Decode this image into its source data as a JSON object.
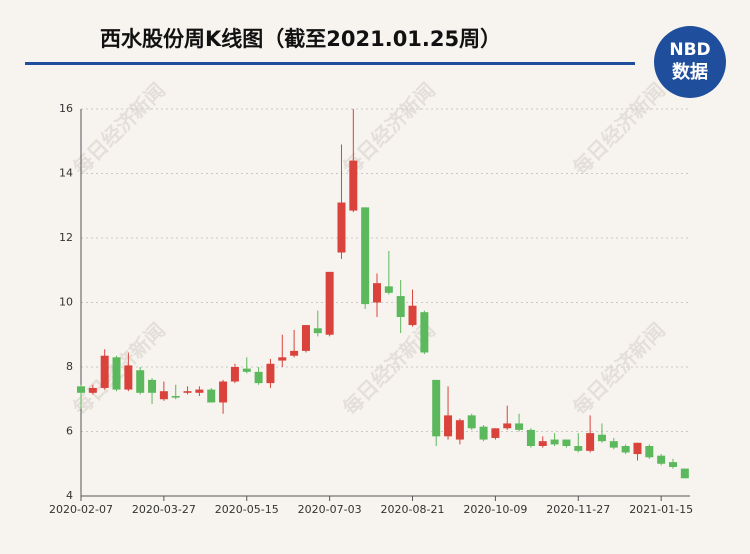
{
  "header": {
    "title": "西水股份周K线图（截至2021.01.25周）",
    "logo_top": "NBD",
    "logo_bottom": "数据"
  },
  "watermark": "每日经济新闻",
  "chart_data": {
    "type": "candlestick",
    "categories": [
      "2020-02-07",
      null,
      null,
      null,
      null,
      null,
      null,
      "2020-03-27",
      null,
      null,
      null,
      null,
      null,
      null,
      "2020-05-15",
      null,
      null,
      null,
      null,
      null,
      null,
      "2020-07-03",
      null,
      null,
      null,
      null,
      null,
      null,
      "2020-08-21",
      null,
      null,
      null,
      null,
      null,
      null,
      "2020-10-09",
      null,
      null,
      null,
      null,
      null,
      null,
      "2020-11-27",
      null,
      null,
      null,
      null,
      null,
      null,
      "2021-01-15",
      null,
      null
    ],
    "open": [
      7.4,
      7.2,
      7.35,
      8.3,
      7.3,
      7.9,
      7.6,
      7.0,
      7.1,
      7.2,
      7.2,
      7.3,
      6.9,
      7.55,
      7.95,
      7.85,
      7.5,
      8.2,
      8.35,
      8.5,
      9.2,
      9.0,
      11.55,
      12.85,
      12.95,
      10.0,
      10.5,
      10.2,
      9.3,
      9.7,
      7.6,
      5.85,
      5.75,
      6.5,
      6.15,
      5.8,
      6.1,
      6.25,
      6.05,
      5.55,
      5.75,
      5.75,
      5.55,
      5.4,
      5.9,
      5.7,
      5.55,
      5.3,
      5.55,
      5.25,
      5.05,
      4.85
    ],
    "high": [
      7.45,
      7.45,
      8.55,
      8.35,
      8.45,
      8.0,
      7.65,
      7.55,
      7.45,
      7.4,
      7.4,
      7.35,
      7.6,
      8.1,
      8.3,
      8.0,
      8.25,
      9.0,
      9.15,
      9.3,
      9.75,
      10.95,
      14.9,
      16.0,
      12.95,
      10.9,
      11.6,
      10.7,
      10.4,
      9.75,
      7.6,
      7.4,
      6.4,
      6.55,
      6.2,
      6.1,
      6.8,
      6.55,
      6.1,
      5.85,
      5.95,
      5.75,
      5.95,
      6.5,
      6.25,
      5.8,
      5.6,
      5.65,
      5.6,
      5.3,
      5.15,
      4.85
    ],
    "low": [
      6.7,
      7.15,
      7.3,
      7.25,
      7.25,
      7.15,
      6.85,
      6.95,
      7.0,
      7.15,
      7.1,
      6.9,
      6.55,
      7.5,
      7.8,
      7.45,
      7.35,
      8.0,
      8.3,
      8.45,
      8.95,
      8.95,
      11.35,
      12.8,
      9.8,
      9.55,
      10.25,
      9.05,
      9.25,
      8.4,
      5.55,
      5.75,
      5.6,
      6.05,
      5.7,
      5.75,
      6.05,
      6.0,
      5.5,
      5.5,
      5.55,
      5.5,
      5.35,
      5.35,
      5.65,
      5.45,
      5.3,
      5.1,
      5.15,
      4.95,
      4.85,
      4.55
    ],
    "close": [
      7.2,
      7.35,
      8.35,
      7.3,
      8.05,
      7.2,
      7.2,
      7.25,
      7.05,
      7.25,
      7.3,
      6.9,
      7.55,
      8.0,
      7.85,
      7.5,
      8.1,
      8.3,
      8.5,
      9.3,
      9.05,
      10.95,
      13.1,
      14.4,
      9.95,
      10.6,
      10.3,
      9.55,
      9.9,
      8.45,
      5.85,
      6.5,
      6.35,
      6.1,
      5.75,
      6.1,
      6.25,
      6.05,
      5.55,
      5.7,
      5.6,
      5.55,
      5.4,
      5.95,
      5.7,
      5.5,
      5.35,
      5.65,
      5.2,
      5.0,
      4.9,
      4.55
    ],
    "up_color": "#d9433b",
    "down_color": "#5cb85c",
    "ylim": [
      4,
      16
    ],
    "yticks": [
      4,
      6,
      8,
      10,
      12,
      14,
      16
    ],
    "grid": true
  }
}
